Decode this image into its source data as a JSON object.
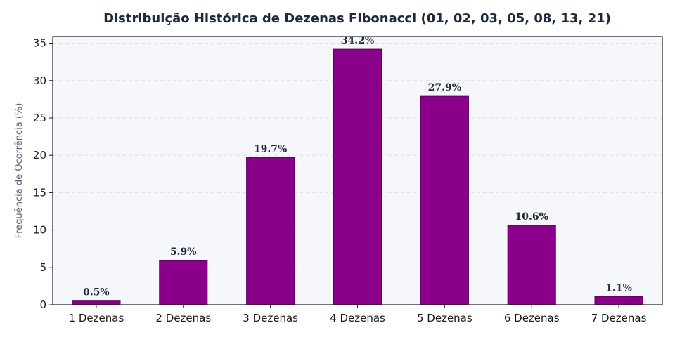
{
  "chart_data": {
    "type": "bar",
    "title": "Distribuição Histórica de Dezenas Fibonacci (01, 02, 03, 05, 08, 13, 21)",
    "xlabel": "",
    "ylabel": "Frequência de Ocorrência (%)",
    "categories": [
      "1 Dezenas",
      "2 Dezenas",
      "3 Dezenas",
      "4 Dezenas",
      "5 Dezenas",
      "6 Dezenas",
      "7 Dezenas"
    ],
    "values": [
      0.5,
      5.9,
      19.7,
      34.2,
      27.9,
      10.6,
      1.1
    ],
    "value_labels": [
      "0.5%",
      "5.9%",
      "19.7%",
      "34.2%",
      "27.9%",
      "10.6%",
      "1.1%"
    ],
    "ylim": [
      0,
      35.9
    ],
    "yticks": [
      0,
      5,
      10,
      15,
      20,
      25,
      30,
      35
    ],
    "grid": true,
    "colors": {
      "bar": "#8b008b",
      "bar_edge": "#5c005c",
      "plot_bg": "#f6f7fa",
      "grid": "#dde1ea"
    }
  }
}
